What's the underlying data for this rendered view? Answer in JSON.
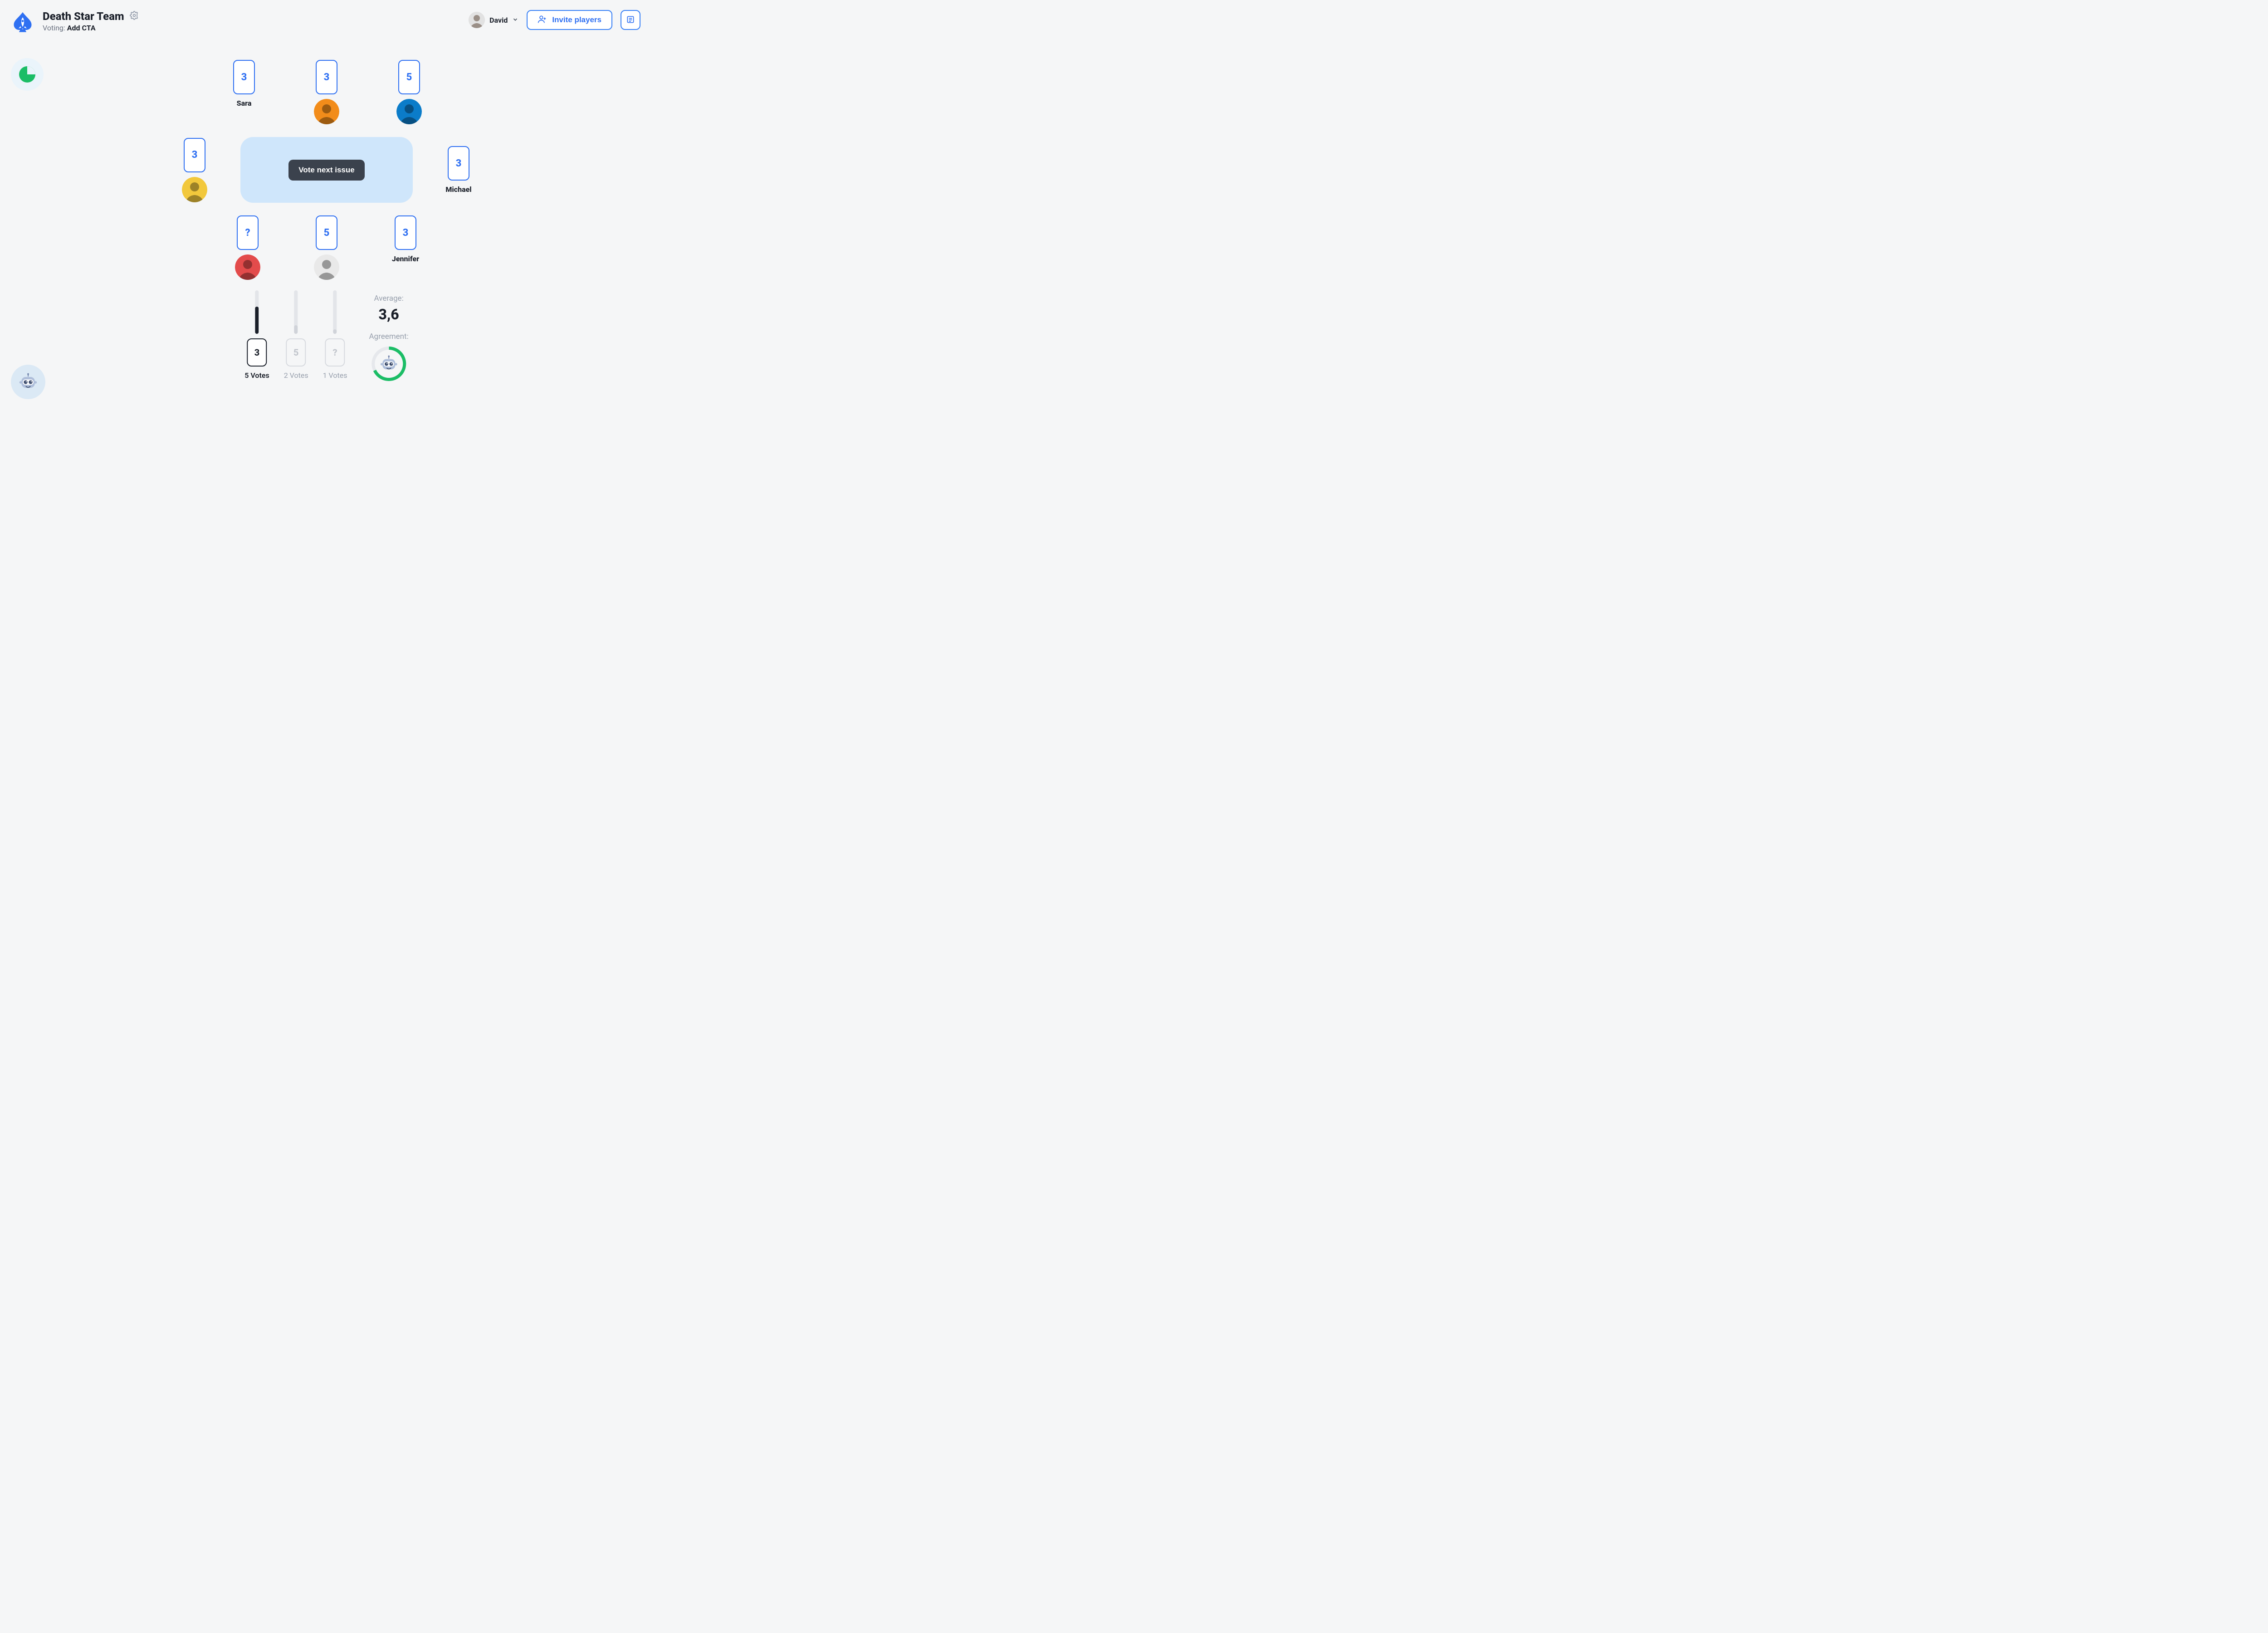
{
  "colors": {
    "primary": "#2f70f2",
    "tableTop": "#cfe6fb",
    "bgBadge": "#eaf4fb",
    "dark": "#1a1f29",
    "muted": "#98a0ad",
    "barTrack": "#e3e5e9",
    "btnDark": "#3b424d",
    "ringGreen": "#1bbd66",
    "robotBg": "#dbe9f5"
  },
  "header": {
    "team_name": "Death Star Team",
    "subtitle_prefix": "Voting: ",
    "subtitle_topic": "Add CTA",
    "user_name": "David",
    "invite_label": "Invite players"
  },
  "board": {
    "next_label": "Vote next issue",
    "top": [
      {
        "vote": "3",
        "name": "Sara",
        "avatar_bg": null
      },
      {
        "vote": "3",
        "name": null,
        "avatar_bg": "#f28c1a"
      },
      {
        "vote": "5",
        "name": null,
        "avatar_bg": "#0b7cc9"
      }
    ],
    "left": {
      "vote": "3",
      "name": null,
      "avatar_bg": "#f2c83c"
    },
    "right": {
      "vote": "3",
      "name": "Michael",
      "avatar_bg": null
    },
    "bottom": [
      {
        "vote": "?",
        "name": null,
        "avatar_bg": "#e34b4b"
      },
      {
        "vote": "5",
        "name": null,
        "avatar_bg": "#e9e9e9"
      },
      {
        "vote": "3",
        "name": "Jennifer",
        "avatar_bg": null
      }
    ]
  },
  "stats": {
    "bars": [
      {
        "label": "3",
        "count_label": "5 Votes",
        "frac": 0.62,
        "selected": true,
        "fill": "#1a1f29"
      },
      {
        "label": "5",
        "count_label": "2 Votes",
        "frac": 0.2,
        "selected": false,
        "fill": "#d0d3d9"
      },
      {
        "label": "?",
        "count_label": "1 Votes",
        "frac": 0.1,
        "selected": false,
        "fill": "#d0d3d9"
      }
    ],
    "average_label": "Average:",
    "average_value": "3,6",
    "agreement_label": "Agreement:",
    "agreement_pct": 68
  },
  "pie": {
    "pct": 25,
    "color": "#1bbd66"
  }
}
